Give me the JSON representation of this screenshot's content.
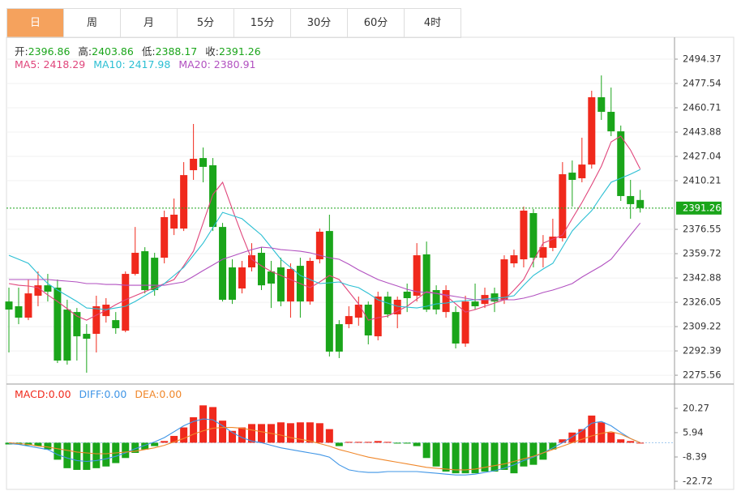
{
  "tabs": [
    "日",
    "周",
    "月",
    "5分",
    "15分",
    "30分",
    "60分",
    "4时"
  ],
  "active_tab": 0,
  "chart_data": [
    {
      "type": "candlestick",
      "labels": {
        "open": "开:",
        "high": "高:",
        "low": "低:",
        "close": "收:"
      },
      "up_color": "#f0291c",
      "down_color": "#1aa51a",
      "open": [
        2326.6,
        2323.3,
        2315.4,
        2330.6,
        2337.8,
        2336.2,
        2321.0,
        2319.3,
        2304.2,
        2304.2,
        2316.5,
        2313.7,
        2306.4,
        2345.7,
        2361.4,
        2356.9,
        2356.9,
        2377.1,
        2377.1,
        2417.5,
        2425.9,
        2420.9,
        2378.2,
        2350.2,
        2335.6,
        2350.2,
        2360.3,
        2347.4,
        2350.2,
        2326.6,
        2351.3,
        2326.6,
        2355.8,
        2375.4,
        2310.9,
        2310.9,
        2315.4,
        2324.4,
        2302.5,
        2330.0,
        2317.7,
        2333.4,
        2330.6,
        2359.2,
        2334.5,
        2319.3,
        2319.3,
        2297.5,
        2326.6,
        2324.9,
        2332.2,
        2327.8,
        2353.0,
        2355.8,
        2387.8,
        2356.9,
        2363.7,
        2370.4,
        2415.8,
        2411.9,
        2421.4,
        2468.0,
        2457.9,
        2444.4,
        2399.6,
        2396.86
      ],
      "high": [
        2336.2,
        2336.2,
        2341.8,
        2347.4,
        2345.7,
        2341.8,
        2327.8,
        2322.1,
        2310.9,
        2330.6,
        2328.9,
        2319.3,
        2347.4,
        2378.2,
        2364.2,
        2360.3,
        2389.5,
        2397.9,
        2423.1,
        2449.5,
        2433.2,
        2425.9,
        2381.0,
        2355.8,
        2354.7,
        2367.0,
        2364.2,
        2354.7,
        2356.9,
        2353.0,
        2356.9,
        2356.9,
        2377.1,
        2386.7,
        2313.7,
        2323.3,
        2330.0,
        2326.6,
        2333.4,
        2333.4,
        2330.0,
        2339.0,
        2367.0,
        2368.1,
        2337.8,
        2337.8,
        2323.3,
        2330.6,
        2339.0,
        2336.2,
        2336.2,
        2358.6,
        2362.5,
        2392.3,
        2390.6,
        2372.6,
        2383.9,
        2423.1,
        2424.2,
        2440.0,
        2472.5,
        2483.1,
        2474.7,
        2448.4,
        2410.8,
        2403.86
      ],
      "low": [
        2291.3,
        2310.9,
        2313.7,
        2323.3,
        2326.6,
        2284.0,
        2282.9,
        2285.7,
        2277.3,
        2291.3,
        2312.0,
        2304.2,
        2305.3,
        2344.6,
        2332.2,
        2330.6,
        2353.0,
        2372.6,
        2375.4,
        2410.8,
        2409.1,
        2375.4,
        2326.6,
        2324.9,
        2332.2,
        2347.4,
        2334.5,
        2322.1,
        2323.3,
        2315.4,
        2315.4,
        2324.4,
        2353.0,
        2288.5,
        2287.4,
        2308.1,
        2309.8,
        2296.9,
        2299.7,
        2315.4,
        2308.1,
        2319.3,
        2326.6,
        2319.3,
        2317.7,
        2315.4,
        2294.1,
        2295.2,
        2321.0,
        2322.1,
        2319.3,
        2324.9,
        2350.2,
        2350.2,
        2350.2,
        2350.2,
        2361.4,
        2368.1,
        2392.3,
        2409.1,
        2418.6,
        2452.3,
        2441.1,
        2396.2,
        2383.9,
        2388.17
      ],
      "close": [
        2321.0,
        2315.4,
        2332.2,
        2337.8,
        2333.4,
        2285.7,
        2285.7,
        2302.5,
        2300.8,
        2323.3,
        2324.4,
        2308.1,
        2345.7,
        2360.3,
        2334.5,
        2334.5,
        2385.0,
        2386.7,
        2414.1,
        2425.4,
        2419.8,
        2378.2,
        2327.8,
        2327.8,
        2350.2,
        2358.6,
        2337.8,
        2339.0,
        2326.6,
        2349.1,
        2326.6,
        2354.7,
        2374.9,
        2291.9,
        2291.9,
        2316.5,
        2324.4,
        2303.1,
        2330.0,
        2317.7,
        2327.8,
        2328.9,
        2358.6,
        2321.0,
        2321.0,
        2334.5,
        2297.5,
        2326.6,
        2323.3,
        2331.1,
        2326.6,
        2355.8,
        2358.6,
        2389.5,
        2356.9,
        2364.2,
        2371.5,
        2414.7,
        2410.8,
        2421.4,
        2468.0,
        2457.9,
        2444.4,
        2399.6,
        2394.0,
        2391.26
      ],
      "ma": [
        {
          "name": "MA5:",
          "color": "#e0457b",
          "values": [
            2339.0,
            2337.8,
            2337.3,
            2336.2,
            2331.1,
            2326.6,
            2321.6,
            2316.5,
            2313.7,
            2317.1,
            2320.5,
            2324.4,
            2327.8,
            2330.6,
            2333.4,
            2336.2,
            2339.0,
            2341.8,
            2351.3,
            2361.4,
            2381.0,
            2400.7,
            2409.1,
            2390.6,
            2372.6,
            2355.8,
            2351.3,
            2347.4,
            2344.6,
            2341.8,
            2339.0,
            2336.2,
            2340.1,
            2344.6,
            2341.8,
            2333.4,
            2324.9,
            2313.7,
            2315.4,
            2316.5,
            2319.9,
            2323.3,
            2328.3,
            2333.4,
            2332.2,
            2330.6,
            2324.9,
            2319.3,
            2321.0,
            2323.3,
            2325.5,
            2327.8,
            2334.5,
            2341.8,
            2354.7,
            2367.0,
            2369.8,
            2372.6,
            2383.9,
            2395.1,
            2407.4,
            2420.3,
            2437.1,
            2441.1,
            2431.5,
            2418.29
          ]
        },
        {
          "name": "MA10:",
          "color": "#2bbfd3",
          "values": [
            2358.6,
            2355.8,
            2353.0,
            2345.7,
            2339.0,
            2334.5,
            2330.6,
            2326.6,
            2322.1,
            2321.6,
            2321.0,
            2322.1,
            2323.3,
            2326.6,
            2330.6,
            2334.5,
            2339.0,
            2344.6,
            2350.2,
            2358.6,
            2367.0,
            2377.7,
            2388.3,
            2386.1,
            2383.9,
            2378.2,
            2372.6,
            2364.2,
            2355.8,
            2350.2,
            2344.6,
            2341.8,
            2339.0,
            2339.5,
            2340.1,
            2337.8,
            2336.2,
            2332.2,
            2327.8,
            2325.5,
            2323.3,
            2322.7,
            2322.1,
            2323.3,
            2324.9,
            2325.5,
            2326.6,
            2327.2,
            2327.8,
            2328.3,
            2328.9,
            2329.4,
            2330.6,
            2337.8,
            2344.6,
            2349.1,
            2353.0,
            2364.2,
            2375.4,
            2382.7,
            2389.5,
            2399.6,
            2409.1,
            2411.9,
            2414.7,
            2417.98
          ]
        },
        {
          "name": "MA20:",
          "color": "#b251c0",
          "values": [
            2341.8,
            2341.8,
            2341.8,
            2341.8,
            2341.8,
            2341.2,
            2340.7,
            2340.1,
            2339.0,
            2339.0,
            2338.4,
            2338.4,
            2337.8,
            2337.8,
            2337.8,
            2337.8,
            2337.8,
            2339.0,
            2340.1,
            2344.0,
            2348.0,
            2351.9,
            2355.8,
            2358.0,
            2360.3,
            2362.5,
            2364.2,
            2363.7,
            2362.5,
            2362.0,
            2361.4,
            2360.3,
            2358.6,
            2356.9,
            2355.8,
            2352.4,
            2348.5,
            2345.1,
            2341.8,
            2339.5,
            2337.3,
            2335.0,
            2333.4,
            2332.8,
            2332.2,
            2331.1,
            2330.0,
            2328.9,
            2327.8,
            2327.8,
            2327.8,
            2327.8,
            2327.8,
            2328.9,
            2330.6,
            2332.8,
            2334.5,
            2336.7,
            2339.0,
            2343.5,
            2347.4,
            2351.3,
            2355.8,
            2364.2,
            2372.6,
            2380.91
          ]
        }
      ],
      "ylim": [
        2270.0,
        2508.4
      ],
      "yticks": [
        2494.37,
        2477.54,
        2460.71,
        2443.88,
        2427.04,
        2410.21,
        2376.55,
        2359.72,
        2342.88,
        2326.05,
        2309.22,
        2292.39,
        2275.56
      ],
      "grid": true,
      "last_price_line": true
    },
    {
      "type": "macd",
      "up_color": "#f0291c",
      "down_color": "#1aa51a",
      "histogram": {
        "name": "MACD:",
        "color": "#f0291c",
        "last_label": "0.00",
        "values": [
          -1,
          -1,
          -1.5,
          -2,
          -4,
          -10,
          -15,
          -16,
          -16,
          -15,
          -14,
          -12,
          -9,
          -6,
          -4,
          -2,
          1,
          4,
          9,
          15,
          22,
          21,
          13,
          7,
          9,
          11,
          11,
          11,
          12,
          11.5,
          12,
          12,
          11.5,
          8,
          -2,
          0.5,
          0.5,
          0.5,
          1,
          0.5,
          -0.5,
          -0.5,
          -2,
          -9,
          -14,
          -17,
          -18,
          -18,
          -18,
          -17,
          -17,
          -16,
          -18,
          -14,
          -13,
          -10,
          -4,
          2,
          6,
          8,
          16,
          12,
          6,
          2,
          1,
          0
        ]
      },
      "series": [
        {
          "name": "DIFF:",
          "color": "#3f95e6",
          "last_label": "0.00",
          "values": [
            -0.5,
            -1,
            -2,
            -3,
            -4,
            -7,
            -9,
            -10.5,
            -11,
            -10.5,
            -9.5,
            -8,
            -6,
            -3.5,
            -1.5,
            0.5,
            3,
            6.5,
            10,
            12.5,
            14,
            13.5,
            10,
            6,
            3,
            1,
            0,
            -1.5,
            -3,
            -4,
            -5,
            -6,
            -7,
            -8.5,
            -13,
            -16,
            -17,
            -17.5,
            -17.5,
            -17,
            -17,
            -17,
            -17,
            -17.5,
            -18,
            -18.5,
            -19,
            -19,
            -18.5,
            -17.5,
            -16.5,
            -15,
            -13,
            -10.5,
            -8.5,
            -6,
            -3,
            0,
            3.5,
            7,
            11.5,
            12.5,
            10,
            6,
            2.5,
            0
          ]
        },
        {
          "name": "DEA:",
          "color": "#f0872a",
          "last_label": "0.00",
          "values": [
            0,
            -0.5,
            -1,
            -2,
            -2.5,
            -3.5,
            -4.5,
            -5.5,
            -6,
            -6.5,
            -6.5,
            -6,
            -5.5,
            -5,
            -4,
            -3,
            -1.5,
            0.5,
            2.5,
            5,
            7,
            8.5,
            9,
            9,
            8.5,
            7.5,
            6.5,
            5.5,
            4.5,
            3,
            2,
            1,
            -0.5,
            -2,
            -4,
            -5.5,
            -7,
            -8.5,
            -9.5,
            -10.5,
            -11.5,
            -12.5,
            -13.5,
            -14.5,
            -15,
            -15.5,
            -16,
            -16,
            -15.5,
            -14.5,
            -13.5,
            -12.5,
            -11,
            -9.5,
            -8,
            -6,
            -4,
            -2,
            0,
            2,
            4,
            5.5,
            6.5,
            5,
            2.5,
            0
          ]
        }
      ],
      "ylim": [
        -27.0,
        33.6
      ],
      "yticks": [
        20.27,
        5.94,
        -8.39,
        -22.72
      ]
    }
  ]
}
